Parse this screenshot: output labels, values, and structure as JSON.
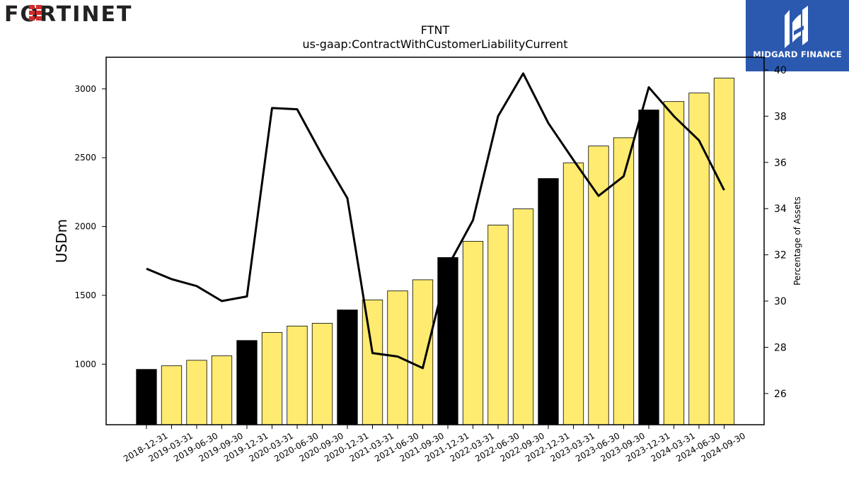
{
  "branding": {
    "left_logo_text": "FORTINET",
    "right_logo_text": "MIDGARD FINANCE",
    "right_logo_color": "#2b59b0"
  },
  "chart_data": {
    "type": "bar",
    "title": "FTNT",
    "subtitle": "us-gaap:ContractWithCustomerLiabilityCurrent",
    "ylabel": "USDm",
    "y2label": "Percentage of Assets",
    "ylim": [
      560,
      3230
    ],
    "y2lim": [
      24.65,
      40.55
    ],
    "yticks": [
      1000,
      1500,
      2000,
      2500,
      3000
    ],
    "y2ticks": [
      26,
      28,
      30,
      32,
      34,
      36,
      38,
      40
    ],
    "categories": [
      "2018-12-31",
      "2019-03-31",
      "2019-06-30",
      "2019-09-30",
      "2019-12-31",
      "2020-03-31",
      "2020-06-30",
      "2020-09-30",
      "2020-12-31",
      "2021-03-31",
      "2021-06-30",
      "2021-09-30",
      "2021-12-31",
      "2022-03-31",
      "2022-06-30",
      "2022-09-30",
      "2022-12-31",
      "2023-03-31",
      "2023-06-30",
      "2023-09-30",
      "2023-12-31",
      "2024-03-31",
      "2024-06-30",
      "2024-09-30"
    ],
    "series": [
      {
        "kind": "bar",
        "values": [
          962,
          988,
          1028,
          1060,
          1172,
          1230,
          1277,
          1297,
          1394,
          1467,
          1532,
          1613,
          1775,
          1893,
          2011,
          2128,
          2349,
          2462,
          2585,
          2645,
          2847,
          2908,
          2970,
          3078
        ],
        "highlight": [
          true,
          false,
          false,
          false,
          true,
          false,
          false,
          false,
          true,
          false,
          false,
          false,
          true,
          false,
          false,
          false,
          true,
          false,
          false,
          false,
          true,
          false,
          false,
          false
        ],
        "color": "#ffeb70",
        "highlight_color": "#000000"
      },
      {
        "kind": "line",
        "axis": "right",
        "values": [
          31.4,
          30.95,
          30.65,
          30.0,
          30.2,
          38.35,
          38.3,
          36.3,
          34.45,
          27.75,
          27.6,
          27.1,
          31.5,
          33.5,
          38.0,
          39.85,
          37.7,
          36.1,
          34.55,
          35.4,
          39.25,
          38.0,
          36.95,
          34.8
        ],
        "color": "#000000"
      }
    ],
    "grid": false
  }
}
